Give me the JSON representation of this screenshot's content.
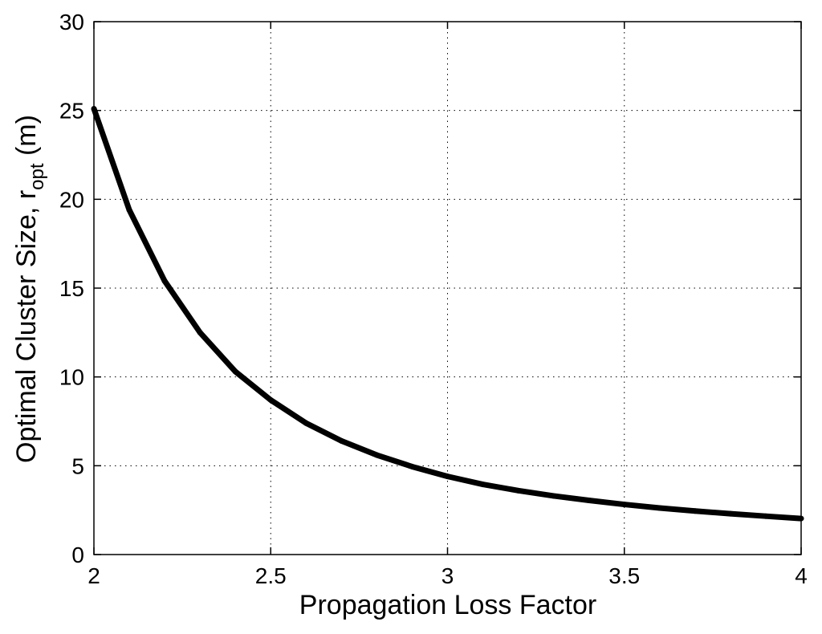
{
  "chart_data": {
    "type": "line",
    "title": "",
    "xlabel": "Propagation Loss Factor",
    "ylabel": {
      "main": "Optimal Cluster Size, r",
      "subscript": "opt",
      "suffix": " (m)"
    },
    "xlim": [
      2,
      4
    ],
    "ylim": [
      0,
      30
    ],
    "x_ticks": [
      2,
      2.5,
      3,
      3.5,
      4
    ],
    "y_ticks": [
      0,
      5,
      10,
      15,
      20,
      25,
      30
    ],
    "x_tick_labels": [
      "2",
      "2.5",
      "3",
      "3.5",
      "4"
    ],
    "y_tick_labels": [
      "0",
      "5",
      "10",
      "15",
      "20",
      "25",
      "30"
    ],
    "grid": true,
    "grid_style": "dotted",
    "legend": "none",
    "line_color": "#000000",
    "series": [
      {
        "x": [
          2.0,
          2.1,
          2.2,
          2.3,
          2.4,
          2.5,
          2.6,
          2.7,
          2.8,
          2.9,
          3.0,
          3.1,
          3.2,
          3.3,
          3.4,
          3.5,
          3.6,
          3.7,
          3.8,
          3.9,
          4.0
        ],
        "values": [
          25.1,
          19.4,
          15.4,
          12.5,
          10.3,
          8.7,
          7.4,
          6.4,
          5.6,
          4.95,
          4.4,
          3.95,
          3.6,
          3.3,
          3.05,
          2.82,
          2.62,
          2.45,
          2.3,
          2.16,
          2.03
        ]
      }
    ]
  }
}
